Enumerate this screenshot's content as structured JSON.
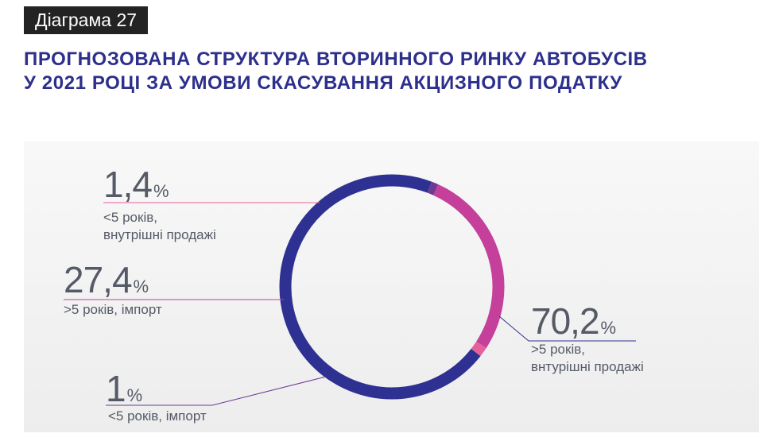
{
  "header": {
    "tag": "Діаграма 27",
    "title_line1": "ПРОГНОЗОВАНА СТРУКТУРА ВТОРИННОГО РИНКУ АВТОБУСІВ",
    "title_line2": "У 2021 РОЦІ ЗА УМОВИ СКАСУВАННЯ АКЦИЗНОГО ПОДАТКУ"
  },
  "chart_data": {
    "type": "pie",
    "donut": true,
    "percent_sign": "%",
    "series": [
      {
        "value": 70.2,
        "value_label": "70,2",
        "line1": ">5 років,",
        "line2": "внтурішні продажі",
        "color": "#2e3192"
      },
      {
        "value": 1,
        "value_label": "1",
        "line1": "<5 років, імпорт",
        "line2": "",
        "color": "#6d3a93"
      },
      {
        "value": 27.4,
        "value_label": "27,4",
        "line1": ">5 років, імпорт",
        "line2": "",
        "color": "#c4409a"
      },
      {
        "value": 1.4,
        "value_label": "1,4",
        "line1": "<5 років,",
        "line2": "внутрішні продажі",
        "color": "#e8609b"
      }
    ]
  }
}
